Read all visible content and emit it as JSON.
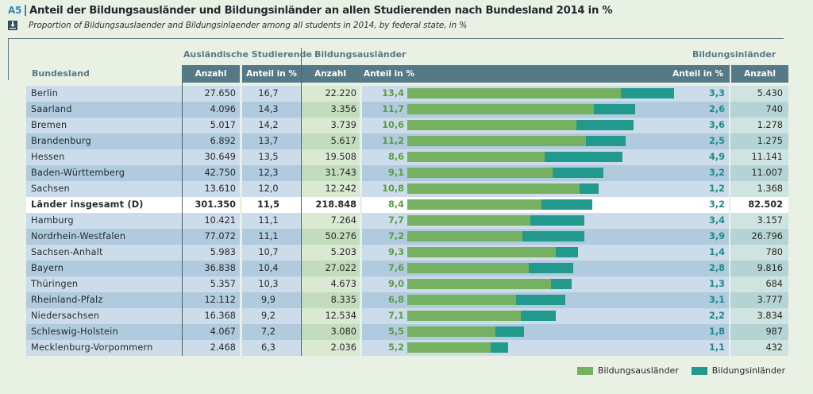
{
  "figure": {
    "id": "A5",
    "title": "Anteil der Bildungsausländer und Bildungsinländer an allen Studierenden nach Bundesland 2014 in %",
    "subtitle": "Proportion of Bildungsauslaender and Bildungsinlaender among all students in 2014, by federal state, in %",
    "download_icon": "download-icon"
  },
  "colors": {
    "bildungsauslaender": "#76b061",
    "bildungsinlaender": "#219a8d",
    "header_bg": "#567987",
    "accent": "#3d86b5"
  },
  "table": {
    "row_header_label": "Bundesland",
    "groups": {
      "auslaendische": "Ausländische Studierende",
      "bildungsauslaender": "Bildungsausländer",
      "bildungsinlaender": "Bildungsinländer"
    },
    "columns": {
      "anzahl_ausl": "Anzahl",
      "anteil_ausl": "Anteil in %",
      "anzahl_baus": "Anzahl",
      "anteil_baus": "Anteil in %",
      "anteil_binl": "Anteil in %",
      "anzahl_binl": "Anzahl"
    }
  },
  "legend": {
    "items": [
      {
        "label": "Bildungsausländer",
        "color": "#76b061"
      },
      {
        "label": "Bildungsinländer",
        "color": "#219a8d"
      }
    ]
  },
  "chart_data": {
    "type": "bar",
    "stacked": true,
    "orientation": "horizontal",
    "title": "Anteil der Bildungsausländer und Bildungsinländer an allen Studierenden nach Bundesland 2014 in %",
    "xlabel": "Anteil in %",
    "ylabel": "Bundesland",
    "legend_position": "bottom-right",
    "categories": [
      "Berlin",
      "Saarland",
      "Bremen",
      "Brandenburg",
      "Hessen",
      "Baden-Württemberg",
      "Sachsen",
      "Länder insgesamt (D)",
      "Hamburg",
      "Nordrhein-Westfalen",
      "Sachsen-Anhalt",
      "Bayern",
      "Thüringen",
      "Rheinland-Pfalz",
      "Niedersachsen",
      "Schleswig-Holstein",
      "Mecklenburg-Vorpommern"
    ],
    "series": [
      {
        "name": "Bildungsausländer",
        "values": [
          13.4,
          11.7,
          10.6,
          11.2,
          8.6,
          9.1,
          10.8,
          8.4,
          7.7,
          7.2,
          9.3,
          7.6,
          9.0,
          6.8,
          7.1,
          5.5,
          5.2
        ]
      },
      {
        "name": "Bildungsinländer",
        "values": [
          3.3,
          2.6,
          3.6,
          2.5,
          4.9,
          3.2,
          1.2,
          3.2,
          3.4,
          3.9,
          1.4,
          2.8,
          1.3,
          3.1,
          2.2,
          1.8,
          1.1
        ]
      }
    ],
    "rows": [
      {
        "name": "Berlin",
        "anz_ausl": "27.650",
        "ant_ausl": "16,7",
        "anz_baus": "22.220",
        "ant_baus": "13,4",
        "ant_binl": "3,3",
        "anz_binl": "5.430",
        "total": false
      },
      {
        "name": "Saarland",
        "anz_ausl": "4.096",
        "ant_ausl": "14,3",
        "anz_baus": "3.356",
        "ant_baus": "11,7",
        "ant_binl": "2,6",
        "anz_binl": "740",
        "total": false
      },
      {
        "name": "Bremen",
        "anz_ausl": "5.017",
        "ant_ausl": "14,2",
        "anz_baus": "3.739",
        "ant_baus": "10,6",
        "ant_binl": "3,6",
        "anz_binl": "1.278",
        "total": false
      },
      {
        "name": "Brandenburg",
        "anz_ausl": "6.892",
        "ant_ausl": "13,7",
        "anz_baus": "5.617",
        "ant_baus": "11,2",
        "ant_binl": "2,5",
        "anz_binl": "1.275",
        "total": false
      },
      {
        "name": "Hessen",
        "anz_ausl": "30.649",
        "ant_ausl": "13,5",
        "anz_baus": "19.508",
        "ant_baus": "8,6",
        "ant_binl": "4,9",
        "anz_binl": "11.141",
        "total": false
      },
      {
        "name": "Baden-Württemberg",
        "anz_ausl": "42.750",
        "ant_ausl": "12,3",
        "anz_baus": "31.743",
        "ant_baus": "9,1",
        "ant_binl": "3,2",
        "anz_binl": "11.007",
        "total": false
      },
      {
        "name": "Sachsen",
        "anz_ausl": "13.610",
        "ant_ausl": "12,0",
        "anz_baus": "12.242",
        "ant_baus": "10,8",
        "ant_binl": "1,2",
        "anz_binl": "1.368",
        "total": false
      },
      {
        "name": "Länder insgesamt (D)",
        "anz_ausl": "301.350",
        "ant_ausl": "11,5",
        "anz_baus": "218.848",
        "ant_baus": "8,4",
        "ant_binl": "3,2",
        "anz_binl": "82.502",
        "total": true
      },
      {
        "name": "Hamburg",
        "anz_ausl": "10.421",
        "ant_ausl": "11,1",
        "anz_baus": "7.264",
        "ant_baus": "7,7",
        "ant_binl": "3,4",
        "anz_binl": "3.157",
        "total": false
      },
      {
        "name": "Nordrhein-Westfalen",
        "anz_ausl": "77.072",
        "ant_ausl": "11,1",
        "anz_baus": "50.276",
        "ant_baus": "7,2",
        "ant_binl": "3,9",
        "anz_binl": "26.796",
        "total": false
      },
      {
        "name": "Sachsen-Anhalt",
        "anz_ausl": "5.983",
        "ant_ausl": "10,7",
        "anz_baus": "5.203",
        "ant_baus": "9,3",
        "ant_binl": "1,4",
        "anz_binl": "780",
        "total": false
      },
      {
        "name": "Bayern",
        "anz_ausl": "36.838",
        "ant_ausl": "10,4",
        "anz_baus": "27.022",
        "ant_baus": "7,6",
        "ant_binl": "2,8",
        "anz_binl": "9.816",
        "total": false
      },
      {
        "name": "Thüringen",
        "anz_ausl": "5.357",
        "ant_ausl": "10,3",
        "anz_baus": "4.673",
        "ant_baus": "9,0",
        "ant_binl": "1,3",
        "anz_binl": "684",
        "total": false
      },
      {
        "name": "Rheinland-Pfalz",
        "anz_ausl": "12.112",
        "ant_ausl": "9,9",
        "anz_baus": "8.335",
        "ant_baus": "6,8",
        "ant_binl": "3,1",
        "anz_binl": "3.777",
        "total": false
      },
      {
        "name": "Niedersachsen",
        "anz_ausl": "16.368",
        "ant_ausl": "9,2",
        "anz_baus": "12.534",
        "ant_baus": "7,1",
        "ant_binl": "2,2",
        "anz_binl": "3.834",
        "total": false
      },
      {
        "name": "Schleswig-Holstein",
        "anz_ausl": "4.067",
        "ant_ausl": "7,2",
        "anz_baus": "3.080",
        "ant_baus": "5,5",
        "ant_binl": "1,8",
        "anz_binl": "987",
        "total": false
      },
      {
        "name": "Mecklenburg-Vorpommern",
        "anz_ausl": "2.468",
        "ant_ausl": "6,3",
        "anz_baus": "2.036",
        "ant_baus": "5,2",
        "ant_binl": "1,1",
        "anz_binl": "432",
        "total": false
      }
    ]
  }
}
